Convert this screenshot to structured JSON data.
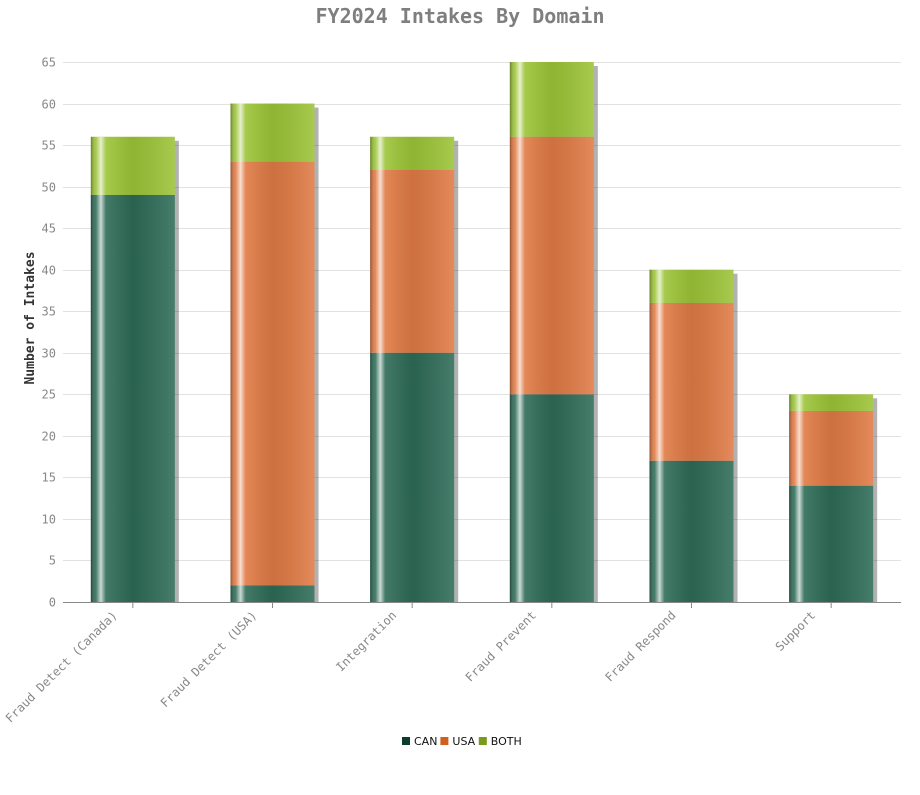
{
  "chart_data": {
    "type": "bar",
    "stacked": true,
    "title": "FY2024 Intakes By Domain",
    "xlabel": "",
    "ylabel": "Number of Intakes",
    "ylim": [
      0,
      65
    ],
    "yticks": [
      0,
      5,
      10,
      15,
      20,
      25,
      30,
      35,
      40,
      45,
      50,
      55,
      60,
      65
    ],
    "grid": true,
    "legend_position": "bottom-center",
    "categories": [
      "Fraud Detect (Canada)",
      "Fraud Detect (USA)",
      "Integration",
      "Fraud Prevent",
      "Fraud Respond",
      "Support"
    ],
    "series": [
      {
        "name": "CAN",
        "color": "#2e6b57",
        "legend_color": "#0d3b2e",
        "values": [
          49,
          2,
          30,
          25,
          17,
          14
        ]
      },
      {
        "name": "USA",
        "color": "#e07a45",
        "legend_color": "#d0601f",
        "values": [
          0,
          51,
          22,
          31,
          19,
          9
        ]
      },
      {
        "name": "BOTH",
        "color": "#9cc437",
        "legend_color": "#7a9a1e",
        "values": [
          7,
          7,
          4,
          9,
          4,
          2
        ]
      }
    ]
  }
}
